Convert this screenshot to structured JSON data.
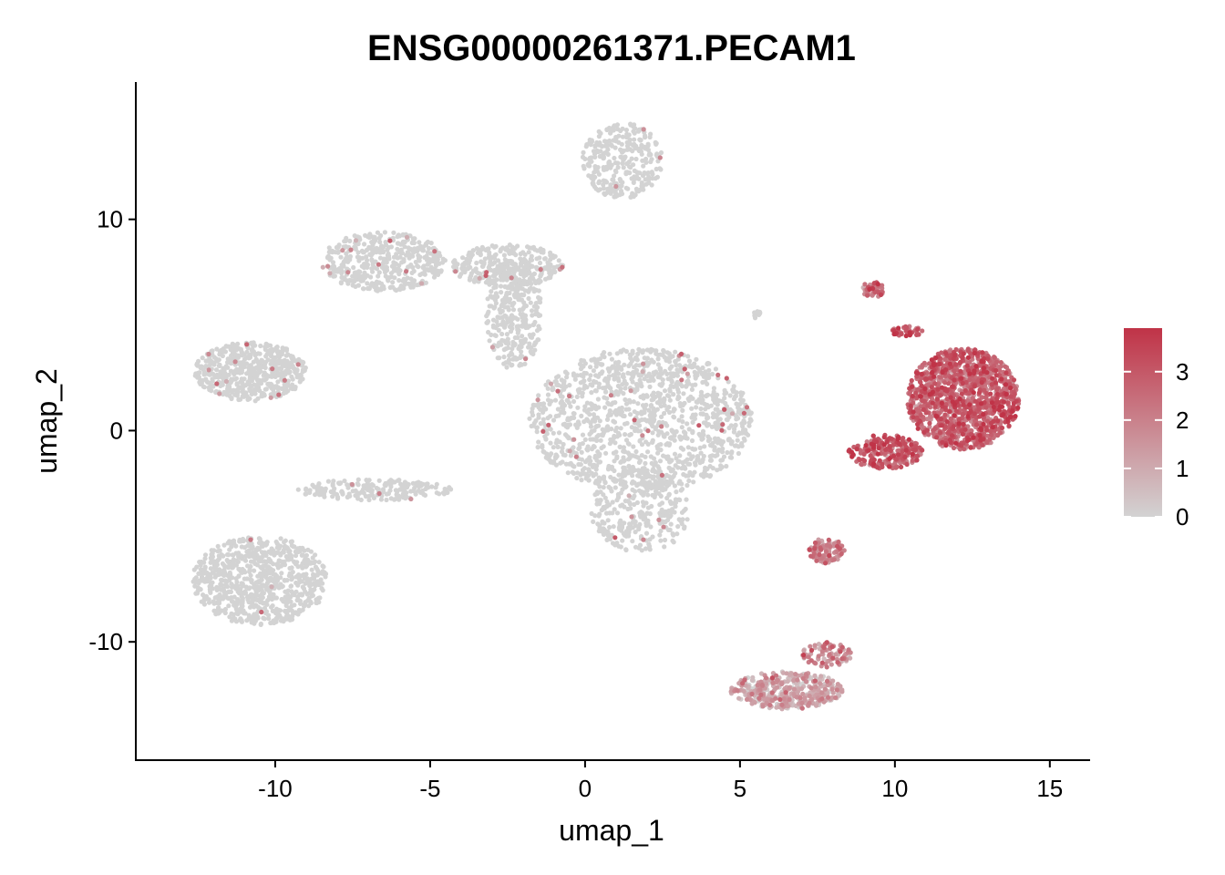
{
  "chart_data": {
    "type": "scatter",
    "title": "ENSG00000261371.PECAM1",
    "xlabel": "umap_1",
    "ylabel": "umap_2",
    "xlim": [
      -14.5,
      16.3
    ],
    "ylim": [
      -15.6,
      16.5
    ],
    "x_ticks": [
      -10,
      -5,
      0,
      5,
      10,
      15
    ],
    "y_ticks": [
      -10,
      0,
      10
    ],
    "x_tick_labels": [
      "-10",
      "-5",
      "0",
      "5",
      "10",
      "15"
    ],
    "y_tick_labels": [
      "-10",
      "0",
      "10"
    ],
    "color_scale": {
      "min_value": 0,
      "max_value": 3.9,
      "low_color": "#d3d3d3",
      "high_color": "#c03347",
      "ticks": [
        0,
        1,
        2,
        3
      ],
      "tick_labels": [
        "0",
        "1",
        "2",
        "3"
      ]
    },
    "grid": false,
    "legend_position": "right",
    "clusters": [
      {
        "cx": 1.2,
        "cy": 12.8,
        "rx": 1.3,
        "ry": 1.8,
        "n": 300,
        "expression": 0.0,
        "sparse_high": 0.01
      },
      {
        "cx": -6.5,
        "cy": 8.0,
        "rx": 2.0,
        "ry": 1.4,
        "n": 450,
        "expression": 0.0,
        "sparse_high": 0.02
      },
      {
        "cx": -2.5,
        "cy": 7.8,
        "rx": 1.8,
        "ry": 1.0,
        "n": 300,
        "expression": 0.0,
        "sparse_high": 0.02
      },
      {
        "cx": -2.3,
        "cy": 5.5,
        "rx": 0.9,
        "ry": 2.6,
        "n": 320,
        "expression": 0.0,
        "sparse_high": 0.02
      },
      {
        "cx": -10.8,
        "cy": 2.8,
        "rx": 1.8,
        "ry": 1.4,
        "n": 550,
        "expression": 0.0,
        "sparse_high": 0.02
      },
      {
        "cx": 1.8,
        "cy": 0.5,
        "rx": 3.6,
        "ry": 3.4,
        "n": 1300,
        "expression": 0.0,
        "sparse_high": 0.025
      },
      {
        "cx": 1.8,
        "cy": -3.8,
        "rx": 1.6,
        "ry": 2.0,
        "n": 300,
        "expression": 0.0,
        "sparse_high": 0.02
      },
      {
        "cx": -6.8,
        "cy": -2.8,
        "rx": 2.5,
        "ry": 0.5,
        "n": 200,
        "expression": 0.0,
        "sparse_high": 0.02
      },
      {
        "cx": -10.5,
        "cy": -7.1,
        "rx": 2.2,
        "ry": 2.1,
        "n": 800,
        "expression": 0.0,
        "sparse_high": 0.003
      },
      {
        "cx": 5.5,
        "cy": 5.5,
        "rx": 0.2,
        "ry": 0.2,
        "n": 12,
        "expression": 0.0,
        "sparse_high": 0.0
      },
      {
        "cx": 12.2,
        "cy": 1.5,
        "rx": 1.8,
        "ry": 2.4,
        "n": 1300,
        "expression": 2.6,
        "sparse_high": 0.0
      },
      {
        "cx": 9.7,
        "cy": -1.0,
        "rx": 1.2,
        "ry": 0.8,
        "n": 220,
        "expression": 2.8,
        "sparse_high": 0.0
      },
      {
        "cx": 9.3,
        "cy": 6.7,
        "rx": 0.35,
        "ry": 0.4,
        "n": 50,
        "expression": 2.4,
        "sparse_high": 0.0
      },
      {
        "cx": 10.4,
        "cy": 4.7,
        "rx": 0.5,
        "ry": 0.25,
        "n": 40,
        "expression": 3.0,
        "sparse_high": 0.0
      },
      {
        "cx": 7.8,
        "cy": -5.7,
        "rx": 0.6,
        "ry": 0.6,
        "n": 120,
        "expression": 1.8,
        "sparse_high": 0.0
      },
      {
        "cx": 6.5,
        "cy": -12.3,
        "rx": 1.8,
        "ry": 0.9,
        "n": 420,
        "expression": 0.9,
        "sparse_high": 0.0
      },
      {
        "cx": 7.8,
        "cy": -10.6,
        "rx": 0.8,
        "ry": 0.6,
        "n": 90,
        "expression": 1.8,
        "sparse_high": 0.0
      }
    ]
  }
}
